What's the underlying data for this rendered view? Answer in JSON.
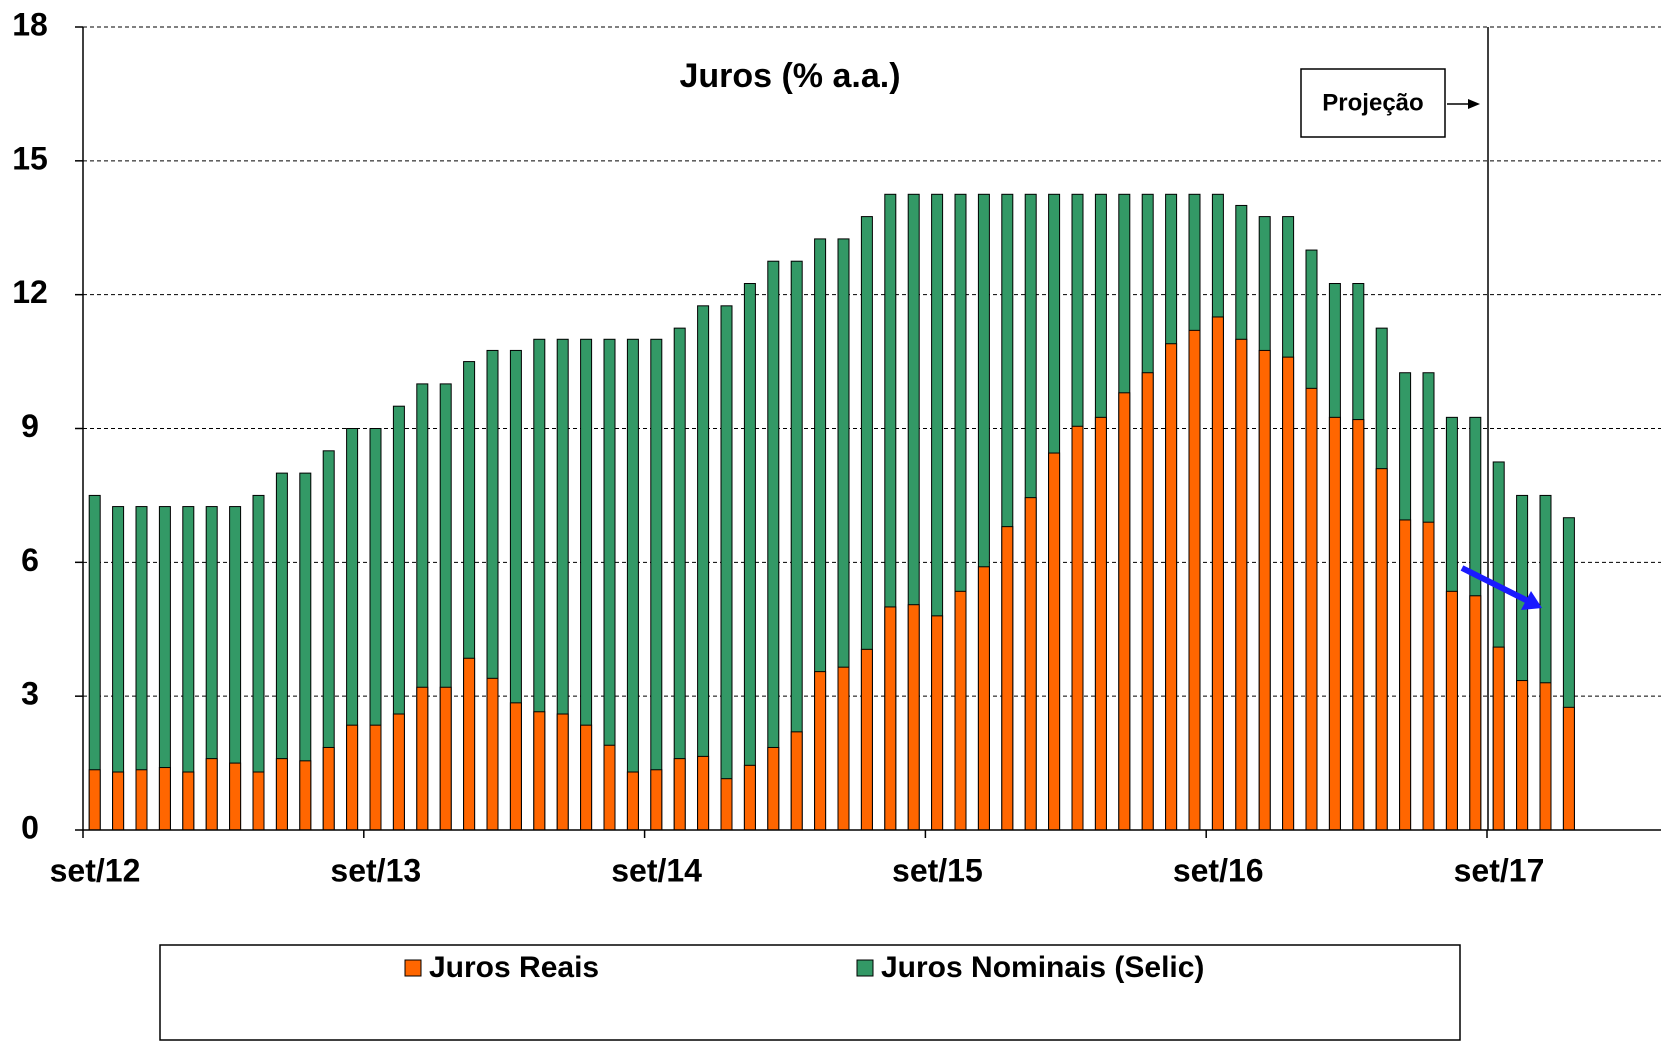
{
  "chart_data": {
    "type": "bar",
    "overlap": true,
    "title": "Juros (% a.a.)",
    "annotations": [
      "Projeção"
    ],
    "categories": [
      "set/12",
      null,
      null,
      null,
      null,
      null,
      null,
      null,
      null,
      null,
      null,
      null,
      "set/13",
      null,
      null,
      null,
      null,
      null,
      null,
      null,
      null,
      null,
      null,
      null,
      "set/14",
      null,
      null,
      null,
      null,
      null,
      null,
      null,
      null,
      null,
      null,
      null,
      "set/15",
      null,
      null,
      null,
      null,
      null,
      null,
      null,
      null,
      null,
      null,
      null,
      "set/16",
      null,
      null,
      null,
      null,
      null,
      null,
      null,
      null,
      null,
      null,
      null,
      "set/17",
      null,
      null,
      null
    ],
    "series": [
      {
        "name": "Juros Nominais (Selic)",
        "color": "#339966",
        "values": [
          7.5,
          7.25,
          7.25,
          7.25,
          7.25,
          7.25,
          7.25,
          7.5,
          8.0,
          8.0,
          8.5,
          9.0,
          9.0,
          9.5,
          10.0,
          10.0,
          10.5,
          10.75,
          10.75,
          11.0,
          11.0,
          11.0,
          11.0,
          11.0,
          11.0,
          11.25,
          11.75,
          11.75,
          12.25,
          12.75,
          12.75,
          13.25,
          13.25,
          13.75,
          14.25,
          14.25,
          14.25,
          14.25,
          14.25,
          14.25,
          14.25,
          14.25,
          14.25,
          14.25,
          14.25,
          14.25,
          14.25,
          14.25,
          14.25,
          14.0,
          13.75,
          13.75,
          13.0,
          12.25,
          12.25,
          11.25,
          10.25,
          10.25,
          9.25,
          9.25,
          8.25,
          7.5,
          7.5,
          7.0
        ]
      },
      {
        "name": "Juros Reais",
        "color": "#ff6600",
        "values": [
          1.35,
          1.3,
          1.35,
          1.4,
          1.3,
          1.6,
          1.5,
          1.3,
          1.6,
          1.55,
          1.85,
          2.35,
          2.35,
          2.6,
          3.2,
          3.2,
          3.85,
          3.4,
          2.85,
          2.65,
          2.6,
          2.35,
          1.9,
          1.3,
          1.35,
          1.6,
          1.65,
          1.15,
          1.45,
          1.85,
          2.2,
          3.55,
          3.65,
          4.05,
          5.0,
          5.05,
          4.8,
          5.35,
          5.9,
          6.8,
          7.45,
          8.45,
          9.05,
          9.25,
          9.8,
          10.25,
          10.9,
          11.2,
          11.5,
          11.0,
          10.75,
          10.6,
          9.9,
          9.25,
          9.2,
          8.1,
          6.95,
          6.9,
          5.35,
          5.25,
          4.1,
          3.35,
          3.3,
          2.75
        ]
      }
    ],
    "legend_order": [
      1,
      0
    ],
    "ylim": [
      0,
      18
    ],
    "yticks": [
      0,
      3,
      6,
      9,
      12,
      15,
      18
    ],
    "grid": true
  }
}
